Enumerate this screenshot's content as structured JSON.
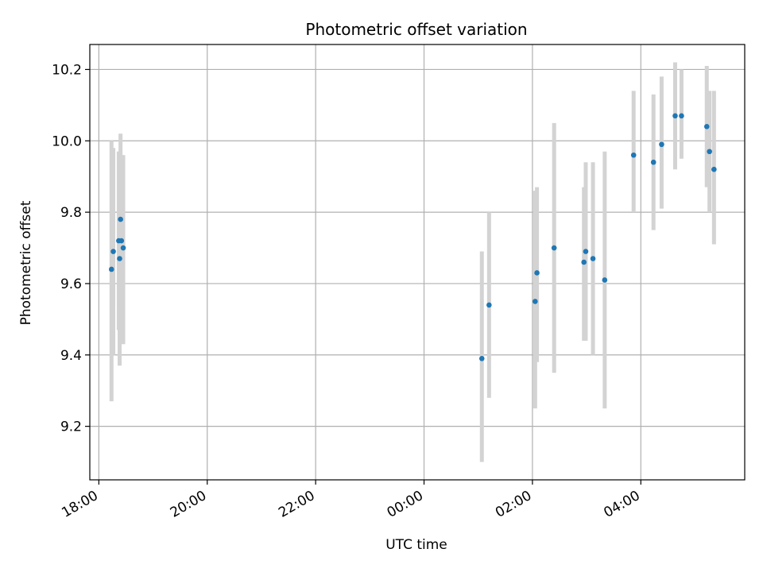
{
  "chart_data": {
    "type": "scatter",
    "title": "Photometric offset variation",
    "xlabel": "UTC time",
    "ylabel": "Photometric offset",
    "x_axis_kind": "time",
    "xlim": [
      "17:50",
      "05:55 (+1 day)"
    ],
    "ylim": [
      9.05,
      10.27
    ],
    "xticks": [
      "18:00",
      "20:00",
      "22:00",
      "00:00",
      "02:00",
      "04:00"
    ],
    "yticks": [
      9.2,
      9.4,
      9.6,
      9.8,
      10.0,
      10.2
    ],
    "ytick_labels": [
      "9.2",
      "9.4",
      "9.6",
      "9.8",
      "10.0",
      "10.2"
    ],
    "grid": true,
    "point_color": "#1f77b4",
    "errorbar_color": "#d3d3d3",
    "points": [
      {
        "x": "18:14",
        "y": 9.64,
        "ylow": 9.27,
        "yhigh": 10.0
      },
      {
        "x": "18:16",
        "y": 9.69,
        "ylow": 9.4,
        "yhigh": 9.98
      },
      {
        "x": "18:22",
        "y": 9.72,
        "ylow": 9.47,
        "yhigh": 9.97
      },
      {
        "x": "18:23",
        "y": 9.67,
        "ylow": 9.37,
        "yhigh": 9.97
      },
      {
        "x": "18:24",
        "y": 9.78,
        "ylow": 9.53,
        "yhigh": 10.02
      },
      {
        "x": "18:25",
        "y": 9.72,
        "ylow": 9.47,
        "yhigh": 9.96
      },
      {
        "x": "18:27",
        "y": 9.7,
        "ylow": 9.43,
        "yhigh": 9.96
      },
      {
        "x": "01:04",
        "y": 9.39,
        "ylow": 9.1,
        "yhigh": 9.69
      },
      {
        "x": "01:12",
        "y": 9.54,
        "ylow": 9.28,
        "yhigh": 9.8
      },
      {
        "x": "02:03",
        "y": 9.55,
        "ylow": 9.25,
        "yhigh": 9.86
      },
      {
        "x": "02:05",
        "y": 9.63,
        "ylow": 9.38,
        "yhigh": 9.87
      },
      {
        "x": "02:24",
        "y": 9.7,
        "ylow": 9.35,
        "yhigh": 10.05
      },
      {
        "x": "02:57",
        "y": 9.66,
        "ylow": 9.44,
        "yhigh": 9.87
      },
      {
        "x": "02:59",
        "y": 9.69,
        "ylow": 9.44,
        "yhigh": 9.94
      },
      {
        "x": "03:07",
        "y": 9.67,
        "ylow": 9.4,
        "yhigh": 9.94
      },
      {
        "x": "03:20",
        "y": 9.61,
        "ylow": 9.25,
        "yhigh": 9.97
      },
      {
        "x": "03:52",
        "y": 9.96,
        "ylow": 9.8,
        "yhigh": 10.14
      },
      {
        "x": "04:14",
        "y": 9.94,
        "ylow": 9.75,
        "yhigh": 10.13
      },
      {
        "x": "04:23",
        "y": 9.99,
        "ylow": 9.81,
        "yhigh": 10.18
      },
      {
        "x": "04:38",
        "y": 10.07,
        "ylow": 9.92,
        "yhigh": 10.22
      },
      {
        "x": "04:45",
        "y": 10.07,
        "ylow": 9.95,
        "yhigh": 10.2
      },
      {
        "x": "05:13",
        "y": 10.04,
        "ylow": 9.87,
        "yhigh": 10.21
      },
      {
        "x": "05:16",
        "y": 9.97,
        "ylow": 9.8,
        "yhigh": 10.14
      },
      {
        "x": "05:21",
        "y": 9.92,
        "ylow": 9.71,
        "yhigh": 10.14
      }
    ]
  }
}
